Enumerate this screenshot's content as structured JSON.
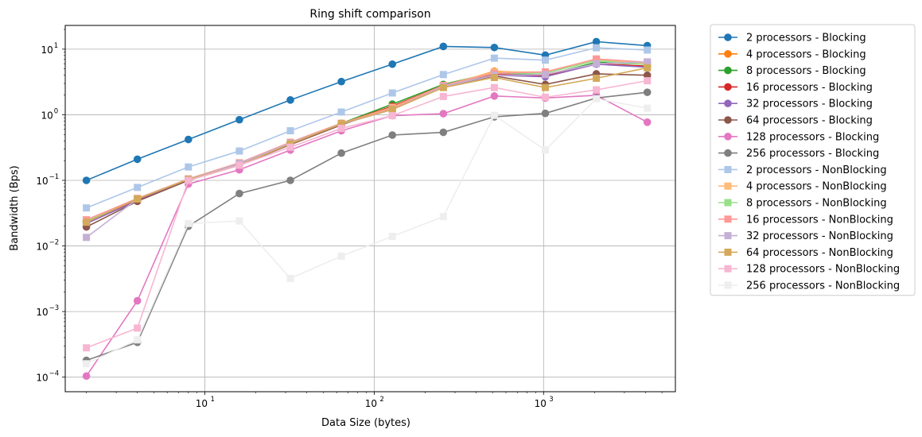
{
  "chart_data": {
    "type": "line",
    "title": "Ring shift comparison",
    "xlabel": "Data Size (bytes)",
    "ylabel": "Bandwidth (Bps)",
    "xscale": "log",
    "yscale": "log",
    "xlim": [
      1.5,
      6000
    ],
    "ylim": [
      6e-05,
      23
    ],
    "grid": true,
    "legend_position": "outside-right",
    "x": [
      2,
      4,
      8,
      16,
      32,
      64,
      128,
      256,
      512,
      1024,
      2048,
      4096
    ],
    "x_ticks": [
      {
        "value": 10,
        "base": "10",
        "exp": "1"
      },
      {
        "value": 100,
        "base": "10",
        "exp": "2"
      },
      {
        "value": 1000,
        "base": "10",
        "exp": "3"
      }
    ],
    "y_ticks": [
      {
        "value": 0.0001,
        "base": "10",
        "exp": "−4"
      },
      {
        "value": 0.001,
        "base": "10",
        "exp": "−3"
      },
      {
        "value": 0.01,
        "base": "10",
        "exp": "−2"
      },
      {
        "value": 0.1,
        "base": "10",
        "exp": "−1"
      },
      {
        "value": 1,
        "base": "10",
        "exp": "0"
      },
      {
        "value": 10,
        "base": "10",
        "exp": "1"
      }
    ],
    "series": [
      {
        "name": "2 processors - Blocking",
        "color": "#1f77b4",
        "marker": "circle",
        "values": [
          0.1,
          0.21,
          0.42,
          0.84,
          1.68,
          3.2,
          5.9,
          11.0,
          10.6,
          8.1,
          13.0,
          11.3
        ]
      },
      {
        "name": "4 processors - Blocking",
        "color": "#ff7f0e",
        "marker": "circle",
        "values": [
          0.024,
          0.05,
          0.1,
          0.18,
          0.37,
          0.72,
          1.35,
          2.7,
          4.6,
          4.3,
          6.8,
          6.0
        ]
      },
      {
        "name": "8 processors - Blocking",
        "color": "#2ca02c",
        "marker": "circle",
        "values": [
          0.023,
          0.05,
          0.1,
          0.18,
          0.38,
          0.74,
          1.45,
          2.9,
          4.4,
          4.0,
          6.3,
          5.9
        ]
      },
      {
        "name": "16 processors - Blocking",
        "color": "#d62728",
        "marker": "circle",
        "values": [
          0.024,
          0.05,
          0.1,
          0.18,
          0.37,
          0.73,
          1.35,
          2.8,
          4.2,
          3.9,
          6.0,
          5.5
        ]
      },
      {
        "name": "32 processors - Blocking",
        "color": "#9467bd",
        "marker": "circle",
        "values": [
          0.022,
          0.049,
          0.1,
          0.18,
          0.36,
          0.72,
          1.3,
          2.7,
          4.0,
          3.8,
          5.9,
          5.3
        ]
      },
      {
        "name": "64 processors - Blocking",
        "color": "#8c564b",
        "marker": "circle",
        "values": [
          0.0195,
          0.048,
          0.1,
          0.17,
          0.35,
          0.7,
          1.3,
          2.7,
          3.9,
          2.9,
          4.2,
          4.0
        ]
      },
      {
        "name": "128 processors - Blocking",
        "color": "#e377c2",
        "marker": "circle",
        "values": [
          0.000104,
          0.00146,
          0.088,
          0.145,
          0.29,
          0.57,
          0.97,
          1.04,
          1.93,
          1.8,
          1.98,
          0.77
        ]
      },
      {
        "name": "256 processors - Blocking",
        "color": "#7f7f7f",
        "marker": "circle",
        "values": [
          0.00018,
          0.00034,
          0.02,
          0.063,
          0.1,
          0.26,
          0.49,
          0.54,
          0.93,
          1.05,
          1.8,
          2.2
        ]
      },
      {
        "name": "2 processors - NonBlocking",
        "color": "#aec7e8",
        "marker": "square",
        "values": [
          0.038,
          0.078,
          0.16,
          0.28,
          0.57,
          1.1,
          2.15,
          4.1,
          7.3,
          6.8,
          10.5,
          9.7
        ]
      },
      {
        "name": "4 processors - NonBlocking",
        "color": "#ffbb78",
        "marker": "square",
        "values": [
          0.025,
          0.053,
          0.105,
          0.185,
          0.38,
          0.74,
          1.3,
          2.8,
          4.5,
          4.5,
          7.0,
          6.0
        ]
      },
      {
        "name": "8 processors - NonBlocking",
        "color": "#98df8a",
        "marker": "square",
        "values": [
          0.024,
          0.052,
          0.104,
          0.18,
          0.37,
          0.73,
          1.25,
          2.75,
          4.3,
          4.3,
          6.7,
          5.8
        ]
      },
      {
        "name": "16 processors - NonBlocking",
        "color": "#ff9896",
        "marker": "square",
        "values": [
          0.025,
          0.053,
          0.105,
          0.185,
          0.38,
          0.74,
          1.25,
          2.8,
          4.3,
          4.5,
          7.1,
          6.3
        ]
      },
      {
        "name": "32 processors - NonBlocking",
        "color": "#c5b0d5",
        "marker": "square",
        "values": [
          0.0135,
          0.052,
          0.104,
          0.18,
          0.37,
          0.72,
          1.2,
          2.7,
          4.0,
          4.1,
          6.0,
          6.4
        ]
      },
      {
        "name": "64 processors - NonBlocking",
        "color": "#dbdb8d",
        "marker": "square",
        "values": [
          0.023,
          0.052,
          0.104,
          0.17,
          0.36,
          0.73,
          1.2,
          2.6,
          3.7,
          2.6,
          3.6,
          5.2
        ],
        "line_color": "#d4a95a"
      },
      {
        "name": "128 processors - NonBlocking",
        "color": "#f7b6d2",
        "marker": "square",
        "values": [
          0.00028,
          0.00056,
          0.1,
          0.17,
          0.32,
          0.62,
          0.97,
          1.9,
          2.6,
          1.85,
          2.4,
          3.3
        ]
      },
      {
        "name": "256 processors - NonBlocking",
        "color": "#eeeeee",
        "marker": "square",
        "values": [
          0.00016,
          0.00037,
          0.022,
          0.024,
          0.0032,
          0.007,
          0.014,
          0.028,
          0.98,
          0.29,
          1.75,
          1.26
        ]
      }
    ]
  }
}
